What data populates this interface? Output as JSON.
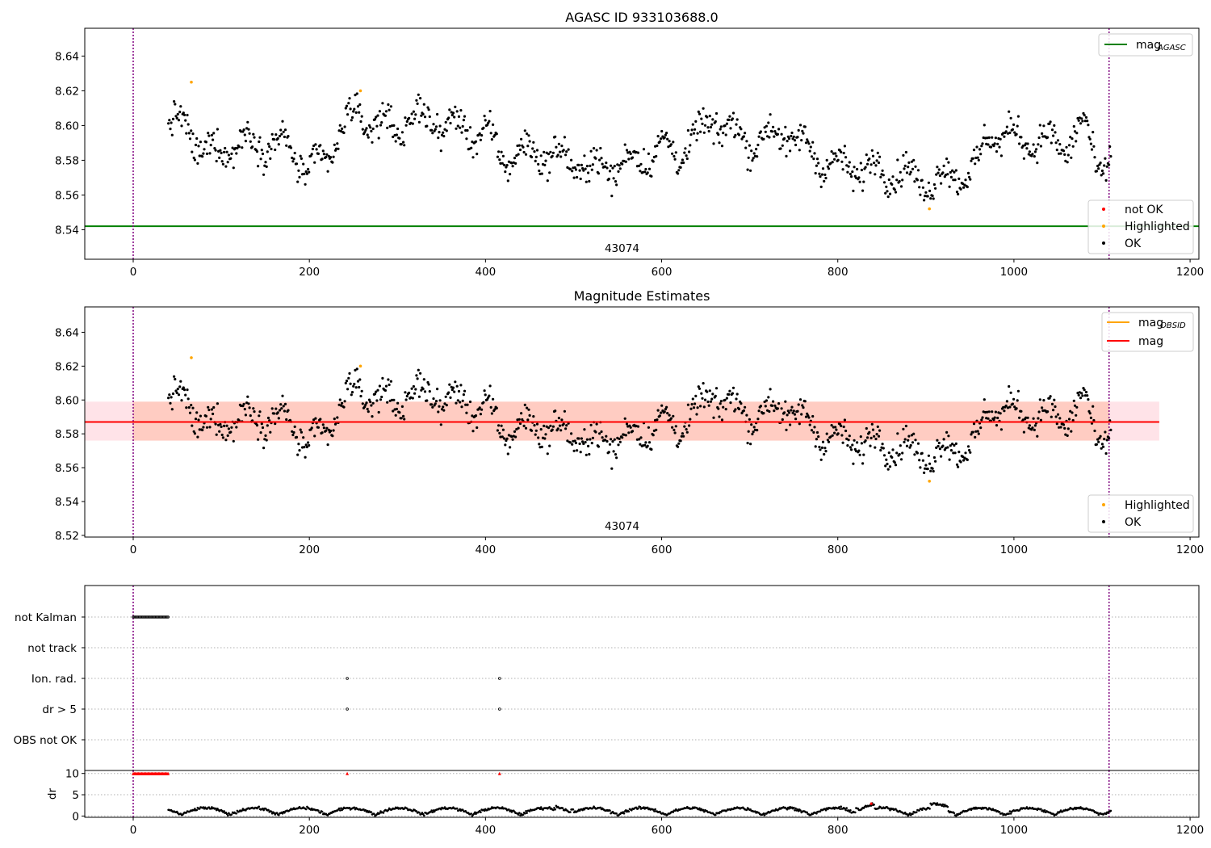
{
  "chart_data": [
    {
      "id": "top",
      "type": "scatter",
      "title": "AGASC ID 933103688.0",
      "xlim": [
        -55,
        1210
      ],
      "ylim": [
        8.523,
        8.656
      ],
      "yticks": [
        "8.54",
        "8.56",
        "8.58",
        "8.60",
        "8.62",
        "8.64"
      ],
      "xticks": [
        "0",
        "200",
        "400",
        "600",
        "800",
        "1000",
        "1200"
      ],
      "obsid_label": "43074",
      "obsid_label_x": 555,
      "vlines_x": [
        0,
        1108
      ],
      "hline": {
        "name": "mag",
        "sub": "AGASC",
        "y": 8.542,
        "color": "#008000"
      },
      "legend_lines": [
        {
          "name": "mag",
          "sub": "AGASC",
          "color": "#008000"
        }
      ],
      "legend_points": [
        {
          "name": "not OK",
          "color": "#ff0000"
        },
        {
          "name": "Highlighted",
          "color": "#ffa500"
        },
        {
          "name": "OK",
          "color": "#000000"
        }
      ],
      "highlighted": [
        [
          66,
          8.625
        ],
        [
          258,
          8.62
        ],
        [
          904,
          8.552
        ]
      ],
      "ok_series": {
        "x_start": 40,
        "x_end": 1110,
        "n": 1000
      }
    },
    {
      "id": "middle",
      "type": "scatter",
      "title": "Magnitude Estimates",
      "xlim": [
        -55,
        1210
      ],
      "ylim": [
        8.519,
        8.655
      ],
      "yticks": [
        "8.52",
        "8.54",
        "8.56",
        "8.58",
        "8.60",
        "8.62",
        "8.64"
      ],
      "xticks": [
        "0",
        "200",
        "400",
        "600",
        "800",
        "1000",
        "1200"
      ],
      "obsid_label": "43074",
      "obsid_label_x": 555,
      "vlines_x": [
        0,
        1108
      ],
      "mag_line": {
        "y": 8.587,
        "x_start": -55,
        "x_end": 1165,
        "color": "#ff0000"
      },
      "mag_band": {
        "y_low": 8.576,
        "y_high": 8.599,
        "x_start": -55,
        "x_end": 1165,
        "color": "#ffc0cb"
      },
      "obsid_line": {
        "y": 8.587,
        "x_start": 0,
        "x_end": 1108,
        "color": "#ffa500"
      },
      "obsid_band": {
        "y_low": 8.576,
        "y_high": 8.599,
        "x_start": 0,
        "x_end": 1108,
        "color": "#ffa07a"
      },
      "legend_lines": [
        {
          "name": "mag",
          "sub": "OBSID",
          "color": "#ffa500"
        },
        {
          "name": "mag",
          "sub": "",
          "color": "#ff0000"
        }
      ],
      "legend_points": [
        {
          "name": "Highlighted",
          "color": "#ffa500"
        },
        {
          "name": "OK",
          "color": "#000000"
        }
      ],
      "highlighted": [
        [
          66,
          8.625
        ],
        [
          258,
          8.62
        ],
        [
          904,
          8.552
        ]
      ],
      "ok_series": {
        "x_start": 40,
        "x_end": 1110,
        "n": 1000
      }
    },
    {
      "id": "flags",
      "type": "scatter",
      "xlim": [
        -55,
        1210
      ],
      "categories": [
        "not Kalman",
        "not track",
        "Ion. rad.",
        "dr > 5",
        "OBS not OK"
      ],
      "flag_points": [
        {
          "category": "not Kalman",
          "x_start": 0,
          "x_end": 40
        },
        {
          "category": "Ion. rad.",
          "x": [
            243,
            416
          ]
        },
        {
          "category": "dr > 5",
          "x": [
            243,
            416
          ]
        }
      ],
      "vlines_x": [
        0,
        1108
      ]
    },
    {
      "id": "dr",
      "type": "scatter",
      "ylabel": "dr",
      "xlim": [
        -55,
        1210
      ],
      "ylim": [
        -0.3,
        10.7
      ],
      "yticks": [
        "0",
        "5",
        "10"
      ],
      "xticks": [
        "0",
        "200",
        "400",
        "600",
        "800",
        "1000",
        "1200"
      ],
      "vlines_x": [
        0,
        1108
      ],
      "red_markers": {
        "y": 10,
        "x_start": 0,
        "x_end": 40,
        "extra_x": [
          243,
          416
        ]
      },
      "series": {
        "x_start": 40,
        "x_end": 1110,
        "n": 1000,
        "y_min": 0,
        "y_max": 3
      }
    }
  ],
  "colors": {
    "vline": "#800080",
    "grid": "#b0b0b0"
  }
}
